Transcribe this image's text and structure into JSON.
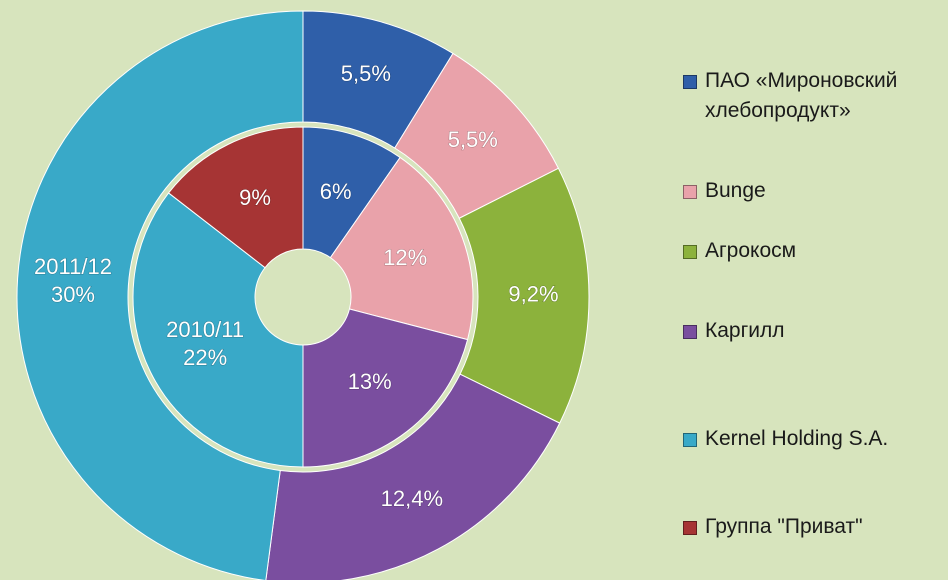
{
  "chart_data": {
    "type": "donut",
    "categories": [
      "ПАО «Мироновский хлебопродукт»",
      "Bunge",
      "Агрокосм",
      "Каргилл",
      "Kernel Holding S.A.",
      "Группа \"Приват\""
    ],
    "colors": [
      "#2f5fa9",
      "#e9a2aa",
      "#8cb23c",
      "#7a4e9f",
      "#39a9c8",
      "#a63434"
    ],
    "series": [
      {
        "name": "2010/11",
        "values": [
          6,
          12,
          null,
          13,
          22,
          9
        ],
        "value_labels": [
          "6%",
          "12%",
          null,
          "13%",
          "22%",
          "9%"
        ]
      },
      {
        "name": "2011/12",
        "values": [
          5.5,
          5.5,
          9.2,
          12.4,
          30,
          null
        ],
        "value_labels": [
          "5,5%",
          "5,5%",
          "9,2%",
          "12,4%",
          "30%",
          null
        ]
      }
    ]
  }
}
